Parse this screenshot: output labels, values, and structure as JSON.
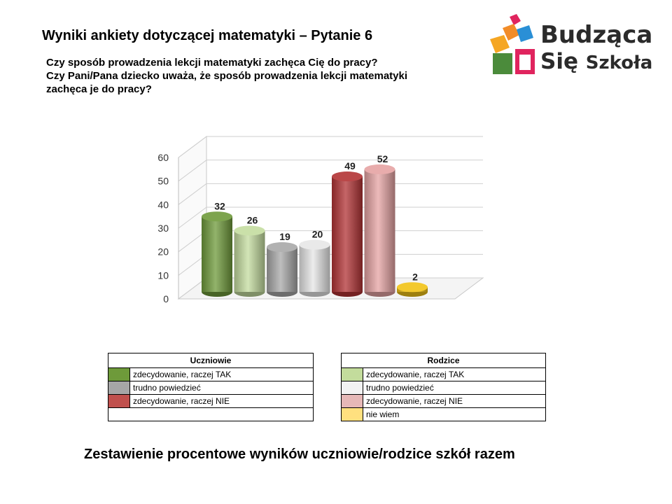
{
  "header": {
    "title": "Wyniki ankiety dotyczącej matematyki – Pytanie 6",
    "question_students": "Czy sposób prowadzenia lekcji matematyki zachęca Cię do pracy?",
    "question_parents": "Czy Pani/Pana dziecko uważa, że sposób prowadzenia lekcji matematyki zachęca je do pracy?"
  },
  "logo": {
    "line1": "Budząca",
    "line2": "Się",
    "line2b": "Szkoła"
  },
  "chart_data": {
    "type": "bar",
    "three_d": true,
    "categories": [
      "zdecydowanie, raczej TAK (Uczniowie)",
      "zdecydowanie, raczej TAK (Rodzice)",
      "trudno powiedzieć (Uczniowie)",
      "trudno powiedzieć (Rodzice)",
      "zdecydowanie, raczej NIE (Uczniowie)",
      "zdecydowanie, raczej NIE (Rodzice)",
      "nie wiem (Rodzice)"
    ],
    "values": [
      32,
      26,
      19,
      20,
      49,
      52,
      2
    ],
    "colors": [
      "#6e9a3a",
      "#c4dc9f",
      "#a8a8a8",
      "#e6e6e6",
      "#b23234",
      "#e5a3a3",
      "#f2c316"
    ],
    "ylim": [
      0,
      60
    ],
    "yticks": [
      "0",
      "10",
      "20",
      "30",
      "40",
      "50",
      "60"
    ],
    "grid": true
  },
  "legend_students": {
    "header": "Uczniowie",
    "items": [
      {
        "label": "zdecydowanie, raczej TAK",
        "color": "#6e9a3a"
      },
      {
        "label": "trudno powiedzieć",
        "color": "#a6a6a6"
      },
      {
        "label": "zdecydowanie, raczej NIE",
        "color": "#c0504d"
      }
    ]
  },
  "legend_parents": {
    "header": "Rodzice",
    "items": [
      {
        "label": "zdecydowanie, raczej TAK",
        "color": "#c3dc9c"
      },
      {
        "label": "trudno powiedzieć",
        "color": "#f2f2f2"
      },
      {
        "label": "zdecydowanie, raczej NIE",
        "color": "#e6b8b7"
      },
      {
        "label": "nie wiem",
        "color": "#ffe07f"
      }
    ]
  },
  "footer": "Zestawienie procentowe wyników uczniowie/rodzice szkół razem"
}
